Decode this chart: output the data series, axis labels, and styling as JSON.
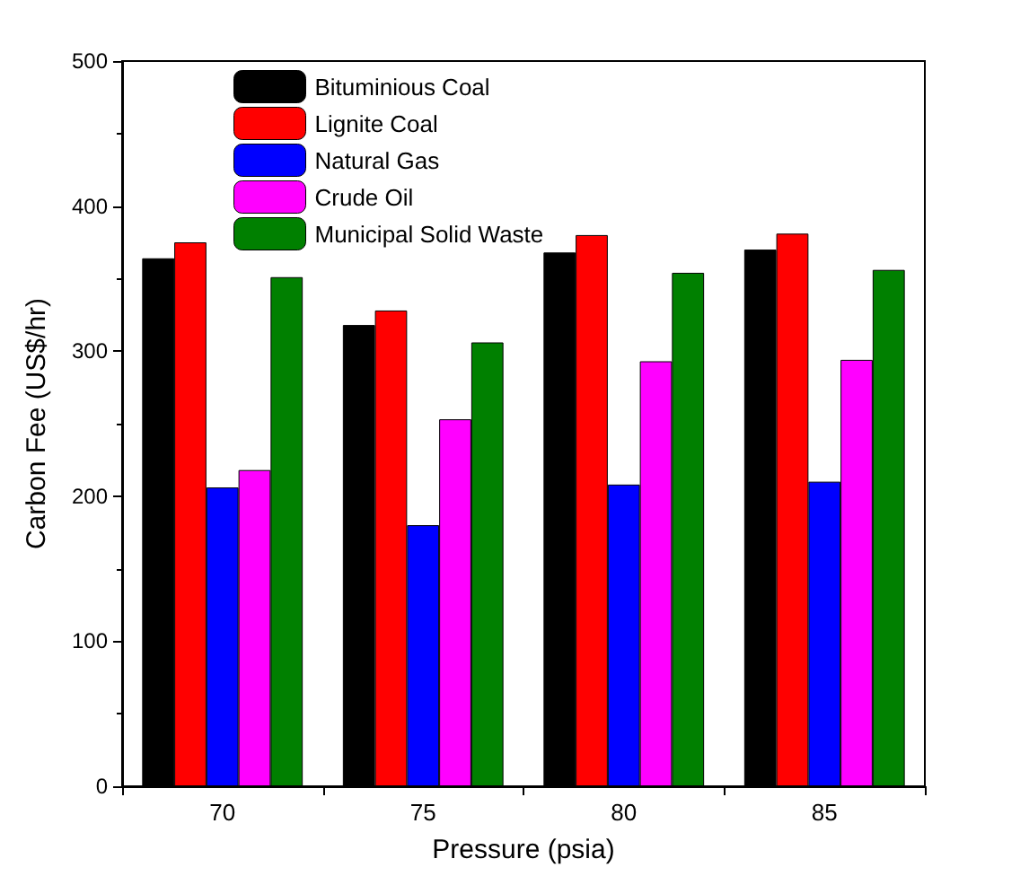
{
  "chart_data": {
    "type": "bar",
    "xlabel": "Pressure (psia)",
    "ylabel": "Carbon Fee (US$/hr)",
    "categories": [
      "70",
      "75",
      "80",
      "85"
    ],
    "series": [
      {
        "name": "Bituminious Coal",
        "color": "#000000",
        "values": [
          364,
          318,
          368,
          370
        ]
      },
      {
        "name": "Lignite Coal",
        "color": "#ff0000",
        "values": [
          375,
          328,
          380,
          381
        ]
      },
      {
        "name": "Natural Gas",
        "color": "#0000ff",
        "values": [
          206,
          180,
          208,
          210
        ]
      },
      {
        "name": "Crude Oil",
        "color": "#ff00ff",
        "values": [
          218,
          253,
          293,
          294
        ]
      },
      {
        "name": "Municipal Solid Waste",
        "color": "#008000",
        "values": [
          351,
          306,
          354,
          356
        ]
      }
    ],
    "ylim": [
      0,
      500
    ],
    "yticks": [
      0,
      100,
      200,
      300,
      400,
      500
    ],
    "grid": false,
    "legend": "top left"
  }
}
